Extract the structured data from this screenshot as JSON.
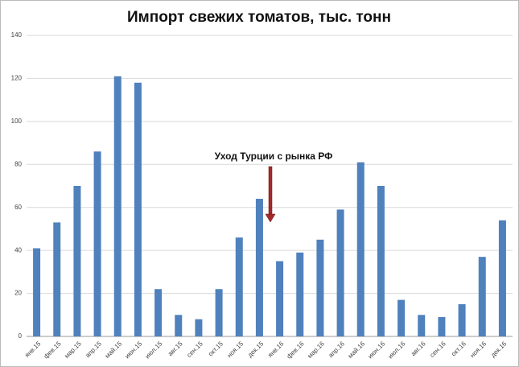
{
  "chart_data": {
    "type": "bar",
    "title": "Импорт свежих томатов, тыс. тонн",
    "annotation": "Уход Турции с рынка РФ",
    "categories": [
      "янв.15",
      "фев.15",
      "мар.15",
      "апр.15",
      "май.15",
      "июн.15",
      "июл.15",
      "авг.15",
      "сен.15",
      "окт.15",
      "ноя.15",
      "дек.15",
      "янв.16",
      "фев.16",
      "мар.16",
      "апр.16",
      "май.16",
      "июн.16",
      "июл.16",
      "авг.16",
      "сен.16",
      "окт.16",
      "ноя.16",
      "дек.16"
    ],
    "values": [
      41,
      53,
      70,
      86,
      121,
      118,
      22,
      10,
      8,
      22,
      46,
      64,
      35,
      39,
      45,
      59,
      81,
      70,
      17,
      10,
      9,
      15,
      37,
      54
    ],
    "color": "#4f81bd",
    "ylim": [
      0,
      140
    ],
    "yticks": [
      0,
      20,
      40,
      60,
      80,
      100,
      120,
      140
    ],
    "grid": true
  }
}
